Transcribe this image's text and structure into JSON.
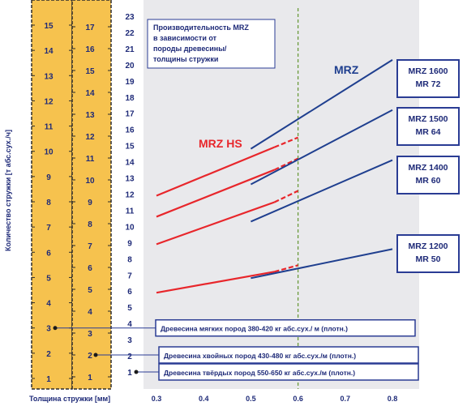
{
  "chart_data": {
    "type": "line",
    "title": "Производительность MRZ в зависимости от породы древесины/ толщины стружки",
    "title_lines": [
      "Производительность MRZ",
      "в зависимости от",
      "породы древесины/",
      "толщины стружки"
    ],
    "xlabel": "Толщина стружки [мм]",
    "ylabel": "Количество стружки [т абс.сух./ч]",
    "xlim": [
      0.3,
      0.8
    ],
    "x_ticks": [
      "0.3",
      "0.4",
      "0.5",
      "0.6",
      "0.7",
      "0.8"
    ],
    "reference_x": 0.6,
    "wood_columns": [
      {
        "name": "soft",
        "values": [
          "1",
          "2",
          "3",
          "4",
          "5",
          "6",
          "7",
          "8",
          "9",
          "10",
          "11",
          "12",
          "13",
          "14",
          "15"
        ]
      },
      {
        "name": "conifer",
        "values": [
          "1",
          "2",
          "3",
          "4",
          "5",
          "6",
          "7",
          "8",
          "9",
          "10",
          "11",
          "12",
          "13",
          "14",
          "15",
          "16",
          "17"
        ]
      },
      {
        "name": "hard",
        "values": [
          "1",
          "2",
          "3",
          "4",
          "5",
          "6",
          "7",
          "8",
          "9",
          "10",
          "11",
          "12",
          "13",
          "14",
          "15",
          "16",
          "17",
          "18",
          "19",
          "20",
          "21",
          "22",
          "23"
        ]
      }
    ],
    "wood_types": [
      {
        "label": "Древесина мягких пород 380-420 кг абс.сух./ м (плотн.)",
        "column": 0,
        "value": 3
      },
      {
        "label": "Древесина хвойных пород 430-480 кг абс.сух./м (плотн.)",
        "column": 1,
        "value": 2
      },
      {
        "label": "Древесина твёрдых пород 550-650 кг абс.сух./м (плотн.)",
        "column": 2,
        "value": 1
      }
    ],
    "mrz_hs_label": "MRZ HS",
    "mrz_label": "MRZ",
    "mrz_hs_series": [
      {
        "solid": [
          [
            0.3,
            11.9
          ],
          [
            0.55,
            14.9
          ]
        ],
        "dashed": [
          [
            0.55,
            14.9
          ],
          [
            0.6,
            15.5
          ]
        ]
      },
      {
        "solid": [
          [
            0.3,
            10.6
          ],
          [
            0.55,
            13.5
          ]
        ],
        "dashed": [
          [
            0.55,
            13.5
          ],
          [
            0.6,
            14.2
          ]
        ]
      },
      {
        "solid": [
          [
            0.3,
            8.9
          ],
          [
            0.55,
            11.5
          ]
        ],
        "dashed": [
          [
            0.55,
            11.5
          ],
          [
            0.6,
            12.2
          ]
        ]
      },
      {
        "solid": [
          [
            0.3,
            5.9
          ],
          [
            0.55,
            7.2
          ]
        ],
        "dashed": [
          [
            0.55,
            7.2
          ],
          [
            0.6,
            7.6
          ]
        ]
      }
    ],
    "mrz_series": [
      {
        "name": "MRZ 1600 MR 72",
        "label_lines": [
          "MRZ 1600",
          "MR 72"
        ],
        "points": [
          [
            0.5,
            14.8
          ],
          [
            0.8,
            20.3
          ]
        ]
      },
      {
        "name": "MRZ 1500 MR 64",
        "label_lines": [
          "MRZ 1500",
          "MR 64"
        ],
        "points": [
          [
            0.5,
            12.6
          ],
          [
            0.8,
            17.2
          ]
        ]
      },
      {
        "name": "MRZ 1400 MR 60",
        "label_lines": [
          "MRZ 1400",
          "MR 60"
        ],
        "points": [
          [
            0.5,
            10.3
          ],
          [
            0.8,
            14.1
          ]
        ]
      },
      {
        "name": "MRZ 1200 MR 50",
        "label_lines": [
          "MRZ 1200",
          "MR 50"
        ],
        "points": [
          [
            0.5,
            6.8
          ],
          [
            0.8,
            8.6
          ]
        ]
      }
    ],
    "colors": {
      "panel": "#e9e9ec",
      "ruler": "#f6c24e",
      "ruler_border": "#2b2b2b",
      "tick_text": "#1e2a78",
      "mrz_hs": "#e8262b",
      "mrz": "#1f3f8f",
      "ref_line": "#6a9a3a",
      "label_border": "#2a3c94"
    }
  }
}
